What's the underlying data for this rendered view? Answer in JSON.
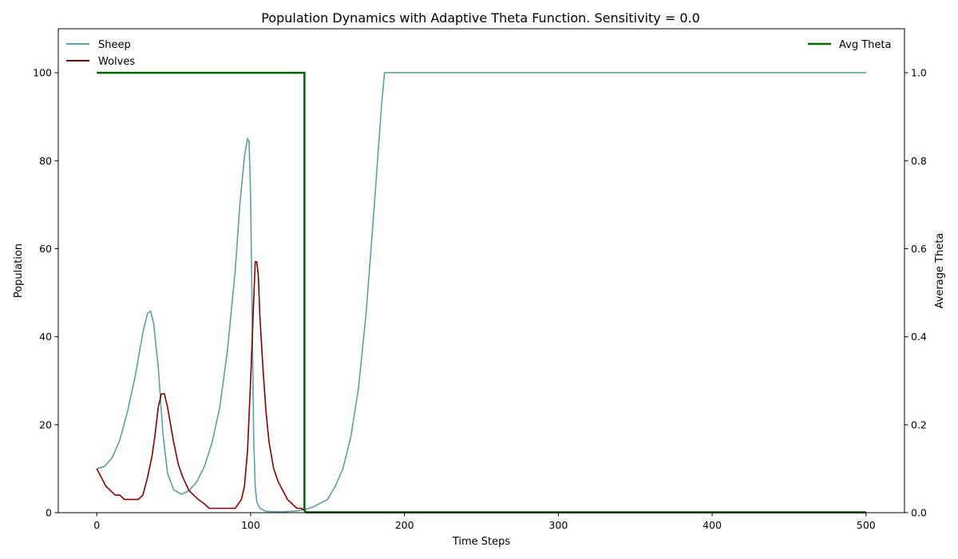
{
  "chart_data": {
    "type": "line",
    "title": "Population Dynamics with Adaptive Theta Function. Sensitivity = 0.0",
    "xlabel": "Time Steps",
    "ylabel": "Population",
    "y2label": "Average Theta",
    "xlim": [
      -25,
      525
    ],
    "ylim": [
      0,
      110
    ],
    "y2lim": [
      0,
      1.1
    ],
    "xticks": [
      0,
      100,
      200,
      300,
      400,
      500
    ],
    "yticks": [
      0,
      20,
      40,
      60,
      80,
      100
    ],
    "y2ticks": [
      0.0,
      0.2,
      0.4,
      0.6,
      0.8,
      1.0
    ],
    "grid": false,
    "legend_left_placement": "top-left",
    "legend_right_placement": "top-right",
    "series": [
      {
        "name": "Sheep",
        "axis": "left",
        "color": "#5f9ea0",
        "x": [
          0,
          5,
          10,
          15,
          20,
          25,
          30,
          33,
          35,
          37,
          40,
          43,
          46,
          50,
          55,
          60,
          65,
          70,
          75,
          80,
          85,
          90,
          93,
          96,
          98,
          99,
          100,
          101,
          102,
          103,
          104,
          106,
          110,
          120,
          130,
          135,
          140,
          150,
          155,
          160,
          165,
          170,
          175,
          180,
          185,
          187,
          190,
          300,
          400,
          500
        ],
        "y": [
          10,
          10.5,
          12.5,
          16.5,
          23,
          31,
          41,
          45.3,
          45.8,
          43,
          33,
          18,
          9,
          5.2,
          4.2,
          5,
          7,
          10.5,
          16,
          24,
          37,
          55,
          70,
          81,
          85,
          84.5,
          72,
          45,
          17,
          6,
          2.5,
          1,
          0.3,
          0.2,
          0.4,
          0.7,
          1.2,
          3,
          6,
          10,
          17,
          28,
          45,
          68,
          92,
          100,
          100,
          100,
          100,
          100
        ]
      },
      {
        "name": "Wolves",
        "axis": "left",
        "color": "#800000",
        "x": [
          0,
          3,
          6,
          9,
          12,
          15,
          18,
          21,
          24,
          27,
          30,
          33,
          36,
          38,
          40,
          42,
          44,
          46,
          48,
          50,
          53,
          56,
          60,
          63,
          66,
          70,
          73,
          76,
          80,
          85,
          90,
          92,
          94,
          96,
          98,
          100,
          102,
          103,
          104,
          105,
          106,
          108,
          110,
          112,
          115,
          118,
          121,
          124,
          127,
          130,
          133,
          135,
          136,
          140,
          200,
          300,
          400,
          500
        ],
        "y": [
          10,
          8,
          6,
          5,
          4,
          4,
          3,
          3,
          3,
          3,
          4,
          8,
          13,
          18,
          24,
          27,
          27,
          24,
          20,
          16,
          11,
          8,
          5,
          4,
          3,
          2,
          1,
          1,
          1,
          1,
          1,
          2,
          3,
          6,
          14,
          30,
          48,
          57,
          57,
          54,
          45,
          33,
          23,
          16,
          10,
          7,
          5,
          3,
          2,
          1,
          1,
          0.5,
          0,
          0,
          0,
          0,
          0,
          0
        ]
      },
      {
        "name": "Avg Theta",
        "axis": "right",
        "color": "#006400",
        "x": [
          0,
          135,
          135,
          135.5,
          136,
          500
        ],
        "y": [
          1.0,
          1.0,
          0.005,
          0.003,
          0.001,
          0.001
        ]
      }
    ]
  }
}
